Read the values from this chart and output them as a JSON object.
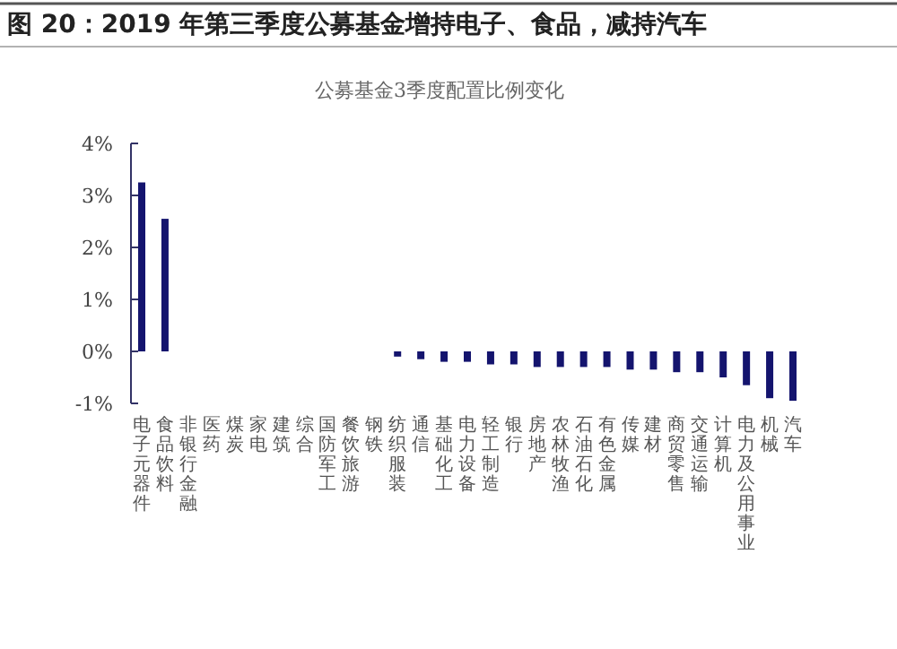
{
  "chart_data": {
    "type": "bar",
    "title": "图 20：2019 年第三季度公募基金增持电子、食品，减持汽车",
    "subtitle": "公募基金3季度配置比例变化",
    "categories": [
      "电子元器件",
      "食品饮料",
      "非银行金融",
      "医药",
      "煤炭",
      "家电",
      "建筑",
      "综合",
      "国防军工",
      "餐饮旅游",
      "钢铁",
      "纺织服装",
      "通信",
      "基础化工",
      "电力设备",
      "轻工制造",
      "银行",
      "房地产",
      "农林牧渔",
      "石油石化",
      "有色金属",
      "传媒",
      "建材",
      "商贸零售",
      "交通运输",
      "计算机",
      "电力及公用事业",
      "机械",
      "汽车"
    ],
    "values": [
      3.25,
      2.55,
      null,
      null,
      null,
      null,
      null,
      null,
      null,
      null,
      null,
      -0.1,
      -0.15,
      -0.2,
      -0.2,
      -0.25,
      -0.25,
      -0.3,
      -0.3,
      -0.3,
      -0.3,
      -0.35,
      -0.35,
      -0.4,
      -0.4,
      -0.5,
      -0.65,
      -0.9,
      -0.95
    ],
    "color": "#14146e",
    "ylim": [
      -1,
      4
    ],
    "yticks": [
      {
        "value": -1,
        "label": "-1%"
      },
      {
        "value": 0,
        "label": "0%"
      },
      {
        "value": 1,
        "label": "1%"
      },
      {
        "value": 2,
        "label": "2%"
      },
      {
        "value": 3,
        "label": "3%"
      },
      {
        "value": 4,
        "label": "4%"
      }
    ],
    "grid": false
  }
}
